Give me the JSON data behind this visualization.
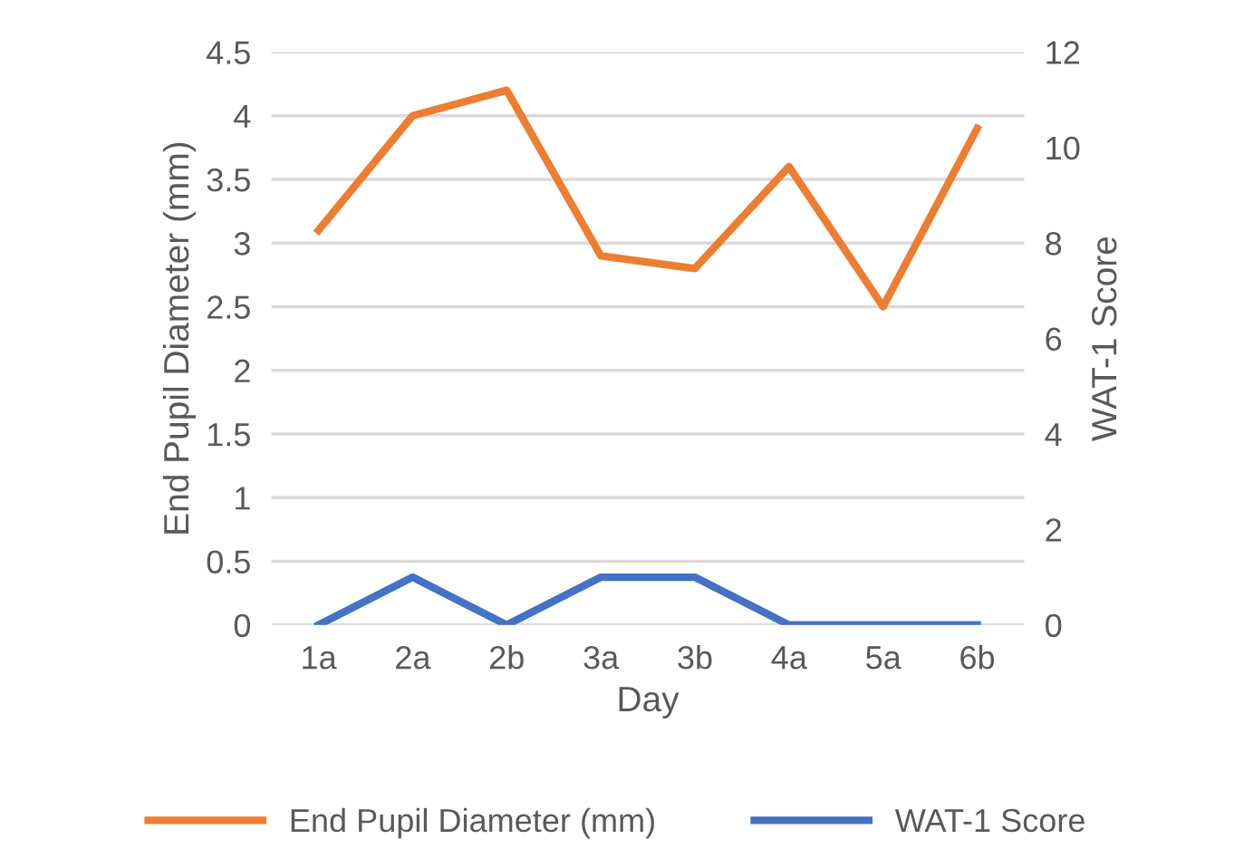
{
  "chart_data": {
    "type": "line",
    "xlabel": "Day",
    "ylabel": "End Pupil Diameter (mm)",
    "y2label": "WAT-1 Score",
    "categories": [
      "1a",
      "2a",
      "2b",
      "3a",
      "3b",
      "4a",
      "5a",
      "6b"
    ],
    "series": [
      {
        "name": "End Pupil Diameter (mm)",
        "color": "#ed7d31",
        "values": [
          3.1,
          4.0,
          4.2,
          2.9,
          2.8,
          3.6,
          2.5,
          3.9
        ]
      },
      {
        "name": "WAT-1 Score",
        "color": "#4472c4",
        "axis": "y2",
        "values": [
          0,
          1,
          0,
          1,
          1,
          0,
          0,
          0
        ]
      }
    ],
    "ylim": [
      0,
      4.5
    ],
    "yticks": [
      0,
      0.5,
      1,
      1.5,
      2,
      2.5,
      3,
      3.5,
      4,
      4.5
    ],
    "y2lim": [
      0,
      12
    ],
    "y2ticks": [
      0,
      2,
      4,
      6,
      8,
      10,
      12
    ],
    "grid": "y",
    "legend": "bottom",
    "marker": "none",
    "line_style": "solid"
  }
}
